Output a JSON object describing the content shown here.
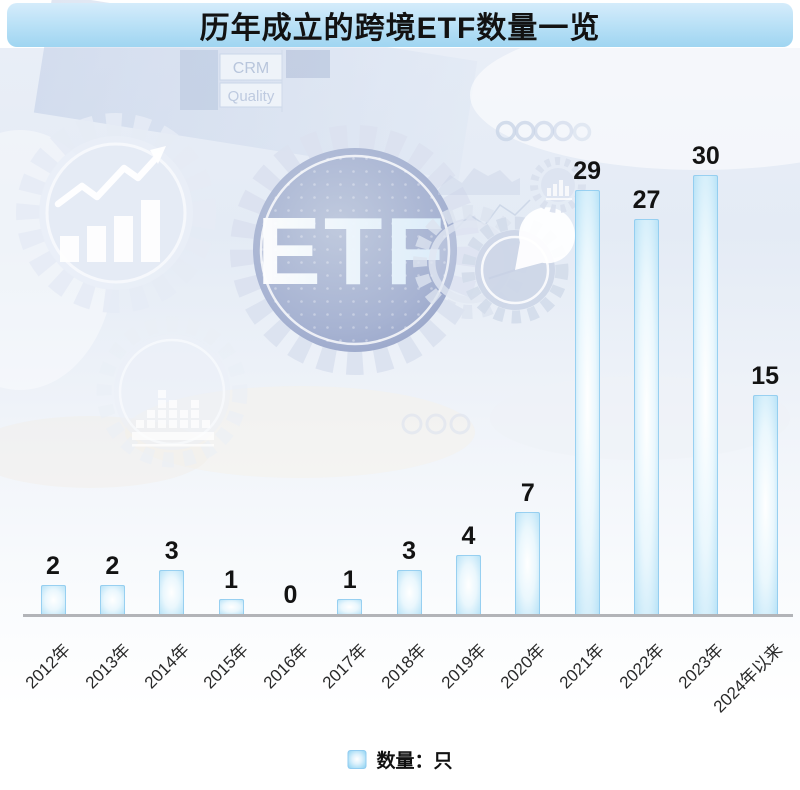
{
  "header": {
    "title": "历年成立的跨境ETF数量一览"
  },
  "chart_data": {
    "type": "bar",
    "title": "历年成立的跨境ETF数量一览",
    "categories": [
      "2012年",
      "2013年",
      "2014年",
      "2015年",
      "2016年",
      "2017年",
      "2018年",
      "2019年",
      "2020年",
      "2021年",
      "2022年",
      "2023年",
      "2024年以来"
    ],
    "values": [
      2,
      2,
      3,
      1,
      0,
      1,
      3,
      4,
      7,
      29,
      27,
      30,
      15
    ],
    "series_name": "数量：只",
    "value_labels_shown": true,
    "grid": false,
    "legend_position": "bottom",
    "ylim": [
      0,
      30
    ],
    "bar_color": "#8fcff1",
    "bar_highlight": "#ffffff",
    "axis_line_color": "#b2b4b8",
    "label_color": "#131313"
  },
  "legend": {
    "label": "数量：只",
    "swatch_color": "#9ad4f2"
  },
  "background": {
    "etf_label": "ETF",
    "table_labels": [
      "CRM",
      "Quality"
    ],
    "icons": [
      "gear-icon",
      "bar-chart-icon",
      "trend-arrow-icon",
      "pie-chart-icon",
      "equalizer-icon",
      "rings-icon"
    ]
  },
  "colors": {
    "title_bar_top": "#d5ecfb",
    "title_bar_bottom": "#9fd5f1",
    "title_text": "#121212",
    "backdrop_blue": "#e6ecf6",
    "etf_circle": "#9fabce"
  }
}
